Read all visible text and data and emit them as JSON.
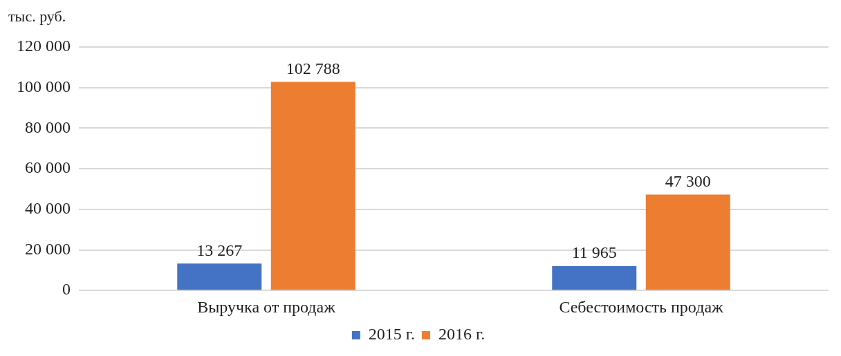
{
  "chart_data": {
    "type": "bar",
    "ylabel": "тыс. руб.",
    "categories": [
      "Выручка от продаж",
      "Себестоимость продаж"
    ],
    "series": [
      {
        "name": "2015 г.",
        "color": "#4472c4",
        "values": [
          13267,
          11965
        ],
        "value_labels": [
          "13 267",
          "11 965"
        ]
      },
      {
        "name": "2016 г.",
        "color": "#ed7d31",
        "values": [
          102788,
          47300
        ],
        "value_labels": [
          "102 788",
          "47 300"
        ]
      }
    ],
    "ylim": [
      0,
      120000
    ],
    "yticks": [
      {
        "value": 0,
        "label": "0"
      },
      {
        "value": 20000,
        "label": "20 000"
      },
      {
        "value": 40000,
        "label": "40 000"
      },
      {
        "value": 60000,
        "label": "60 000"
      },
      {
        "value": 80000,
        "label": "80 000"
      },
      {
        "value": 100000,
        "label": "100 000"
      },
      {
        "value": 120000,
        "label": "120 000"
      }
    ],
    "grid": "y",
    "legend": "bottom"
  }
}
